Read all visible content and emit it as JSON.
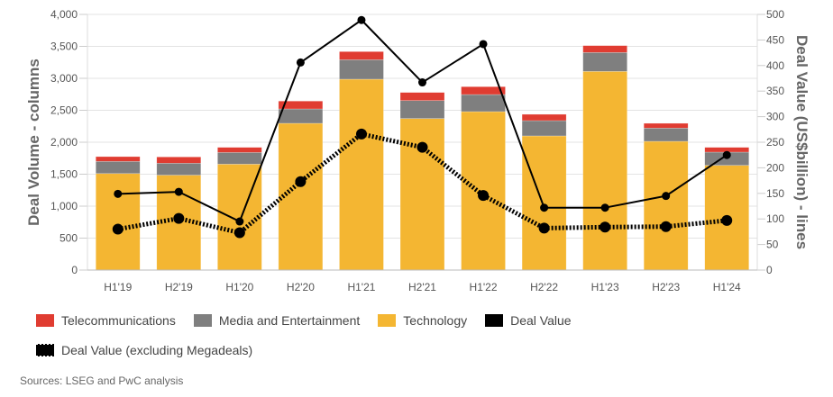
{
  "chart_data": {
    "type": "bar",
    "subtype": "stacked-bar-with-lines-dual-axis",
    "categories": [
      "H1'19",
      "H2'19",
      "H1'20",
      "H2'20",
      "H1'21",
      "H2'21",
      "H1'22",
      "H2'22",
      "H1'23",
      "H2'23",
      "H1'24"
    ],
    "series": [
      {
        "name": "Technology",
        "kind": "bar",
        "axis": "left",
        "color": "#f4b632",
        "values": [
          1510,
          1485,
          1657,
          2296,
          2986,
          2371,
          2479,
          2099,
          3108,
          2014,
          1638
        ]
      },
      {
        "name": "Media and Entertainment",
        "kind": "bar",
        "axis": "left",
        "color": "#7f7f7f",
        "values": [
          190,
          187,
          183,
          225,
          305,
          281,
          267,
          239,
          296,
          207,
          207
        ]
      },
      {
        "name": "Telecommunications",
        "kind": "bar",
        "axis": "left",
        "color": "#e03c31",
        "values": [
          75,
          98,
          80,
          123,
          127,
          127,
          123,
          99,
          108,
          75,
          75
        ]
      },
      {
        "name": "Deal Value",
        "kind": "line",
        "axis": "right",
        "style": "solid",
        "color": "#000000",
        "values": [
          149,
          153,
          95,
          406,
          489,
          367,
          442,
          122,
          122,
          145,
          225
        ]
      },
      {
        "name": "Deal Value (excluding Megadeals)",
        "kind": "line",
        "axis": "right",
        "style": "dotted",
        "color": "#000000",
        "values": [
          80,
          101,
          73,
          173,
          266,
          240,
          146,
          82,
          84,
          85,
          97
        ]
      }
    ],
    "title": "",
    "xlabel": "",
    "ylabel": "Deal Volume - columns",
    "y2label": "Deal Value (US$billion) - lines",
    "ylim": [
      0,
      4000
    ],
    "y2lim": [
      0,
      500
    ],
    "yticks": [
      "0",
      "500",
      "1,000",
      "1,500",
      "2,000",
      "2,500",
      "3,000",
      "3,500",
      "4,000"
    ],
    "y2ticks": [
      "0",
      "50",
      "100",
      "150",
      "200",
      "250",
      "300",
      "350",
      "400",
      "450",
      "500"
    ],
    "grid": true,
    "legend_position": "bottom-left"
  },
  "legend": [
    {
      "label": "Telecommunications",
      "color": "#e03c31",
      "style": "box"
    },
    {
      "label": "Media and Entertainment",
      "color": "#7f7f7f",
      "style": "box"
    },
    {
      "label": "Technology",
      "color": "#f4b632",
      "style": "box"
    },
    {
      "label": "Deal Value",
      "color": "#000000",
      "style": "box"
    },
    {
      "label": "Deal Value (excluding Megadeals)",
      "color": "#000000",
      "style": "dotted"
    }
  ],
  "source": "Sources: LSEG and PwC analysis"
}
